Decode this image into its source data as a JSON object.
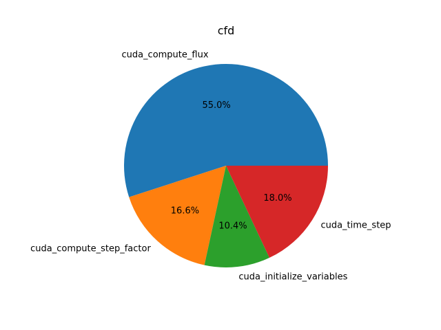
{
  "chart_data": {
    "type": "pie",
    "title": "cfd",
    "start_angle_deg": 0,
    "direction": "counterclockwise",
    "slices": [
      {
        "label": "cuda_compute_flux",
        "value": 55.0,
        "pct_text": "55.0%",
        "color": "#1f77b4"
      },
      {
        "label": "cuda_compute_step_factor",
        "value": 16.6,
        "pct_text": "16.6%",
        "color": "#ff7f0e"
      },
      {
        "label": "cuda_initialize_variables",
        "value": 10.4,
        "pct_text": "10.4%",
        "color": "#2ca02c"
      },
      {
        "label": "cuda_time_step",
        "value": 18.0,
        "pct_text": "18.0%",
        "color": "#d62728"
      }
    ]
  }
}
